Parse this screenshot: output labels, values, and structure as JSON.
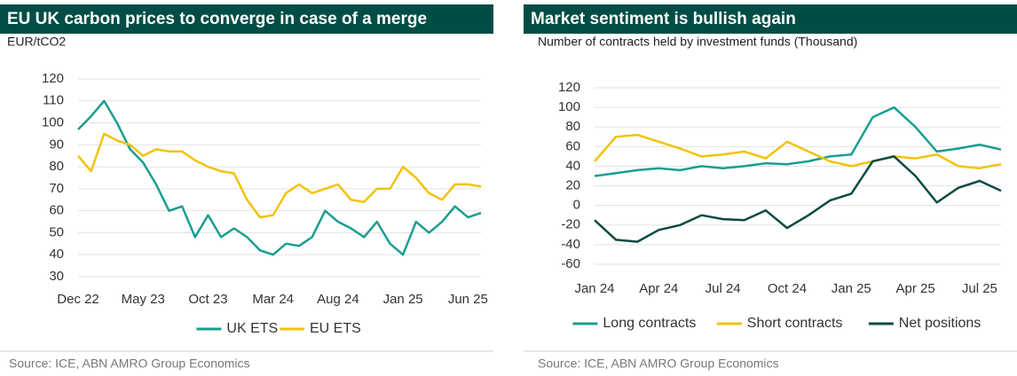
{
  "chart_data": [
    {
      "type": "line",
      "title": "EU UK carbon prices to converge in case of a merge",
      "subtitle": "EUR/tCO2",
      "source": "Source: ICE, ABN AMRO Group Economics",
      "categories": [
        "Dec 22",
        null,
        null,
        null,
        null,
        "May 23",
        null,
        null,
        null,
        null,
        "Oct 23",
        null,
        null,
        null,
        null,
        "Mar 24",
        null,
        null,
        null,
        null,
        "Aug 24",
        null,
        null,
        null,
        null,
        "Jan 25",
        null,
        null,
        null,
        null,
        "Jun 25",
        null
      ],
      "series": [
        {
          "name": "UK ETS",
          "color": "#1a9e8f",
          "values": [
            97,
            103,
            110,
            100,
            88,
            82,
            72,
            60,
            62,
            48,
            58,
            48,
            52,
            48,
            42,
            40,
            45,
            44,
            48,
            60,
            55,
            52,
            48,
            55,
            45,
            40,
            55,
            50,
            55,
            62,
            57,
            59
          ]
        },
        {
          "name": "EU ETS",
          "color": "#f2c20a",
          "values": [
            85,
            78,
            95,
            92,
            90,
            85,
            88,
            87,
            87,
            83,
            80,
            78,
            77,
            65,
            57,
            58,
            68,
            72,
            68,
            70,
            72,
            65,
            64,
            70,
            70,
            80,
            75,
            68,
            65,
            72,
            72,
            71
          ]
        }
      ],
      "ylim": [
        30,
        120
      ],
      "yticks": [
        30,
        40,
        50,
        60,
        70,
        80,
        90,
        100,
        110,
        120
      ],
      "grid": true,
      "legend": "bottom"
    },
    {
      "type": "line",
      "title": "Market sentiment is bullish again",
      "subtitle": "Number of contracts held by investment funds (Thousand)",
      "source": "Source: ICE, ABN AMRO Group Economics",
      "categories": [
        "Jan 24",
        null,
        null,
        "Apr 24",
        null,
        null,
        "Jul 24",
        null,
        null,
        "Oct 24",
        null,
        null,
        "Jan 25",
        null,
        null,
        "Apr 25",
        null,
        null,
        "Jul 25",
        null
      ],
      "series": [
        {
          "name": "Long contracts",
          "color": "#1a9e8f",
          "values": [
            30,
            33,
            36,
            38,
            36,
            40,
            38,
            40,
            43,
            42,
            45,
            50,
            52,
            90,
            100,
            80,
            55,
            58,
            62,
            57
          ]
        },
        {
          "name": "Short contracts",
          "color": "#f2c20a",
          "values": [
            45,
            70,
            72,
            65,
            58,
            50,
            52,
            55,
            48,
            65,
            55,
            45,
            40,
            45,
            50,
            48,
            52,
            40,
            38,
            42
          ]
        },
        {
          "name": "Net positions",
          "color": "#0b4a42",
          "values": [
            -15,
            -35,
            -37,
            -25,
            -20,
            -10,
            -14,
            -15,
            -5,
            -23,
            -10,
            5,
            12,
            45,
            50,
            30,
            3,
            18,
            25,
            15
          ]
        }
      ],
      "ylim": [
        -60,
        120
      ],
      "yticks": [
        -60,
        -40,
        -20,
        0,
        20,
        40,
        60,
        80,
        100,
        120
      ],
      "grid": true,
      "legend": "bottom"
    }
  ]
}
